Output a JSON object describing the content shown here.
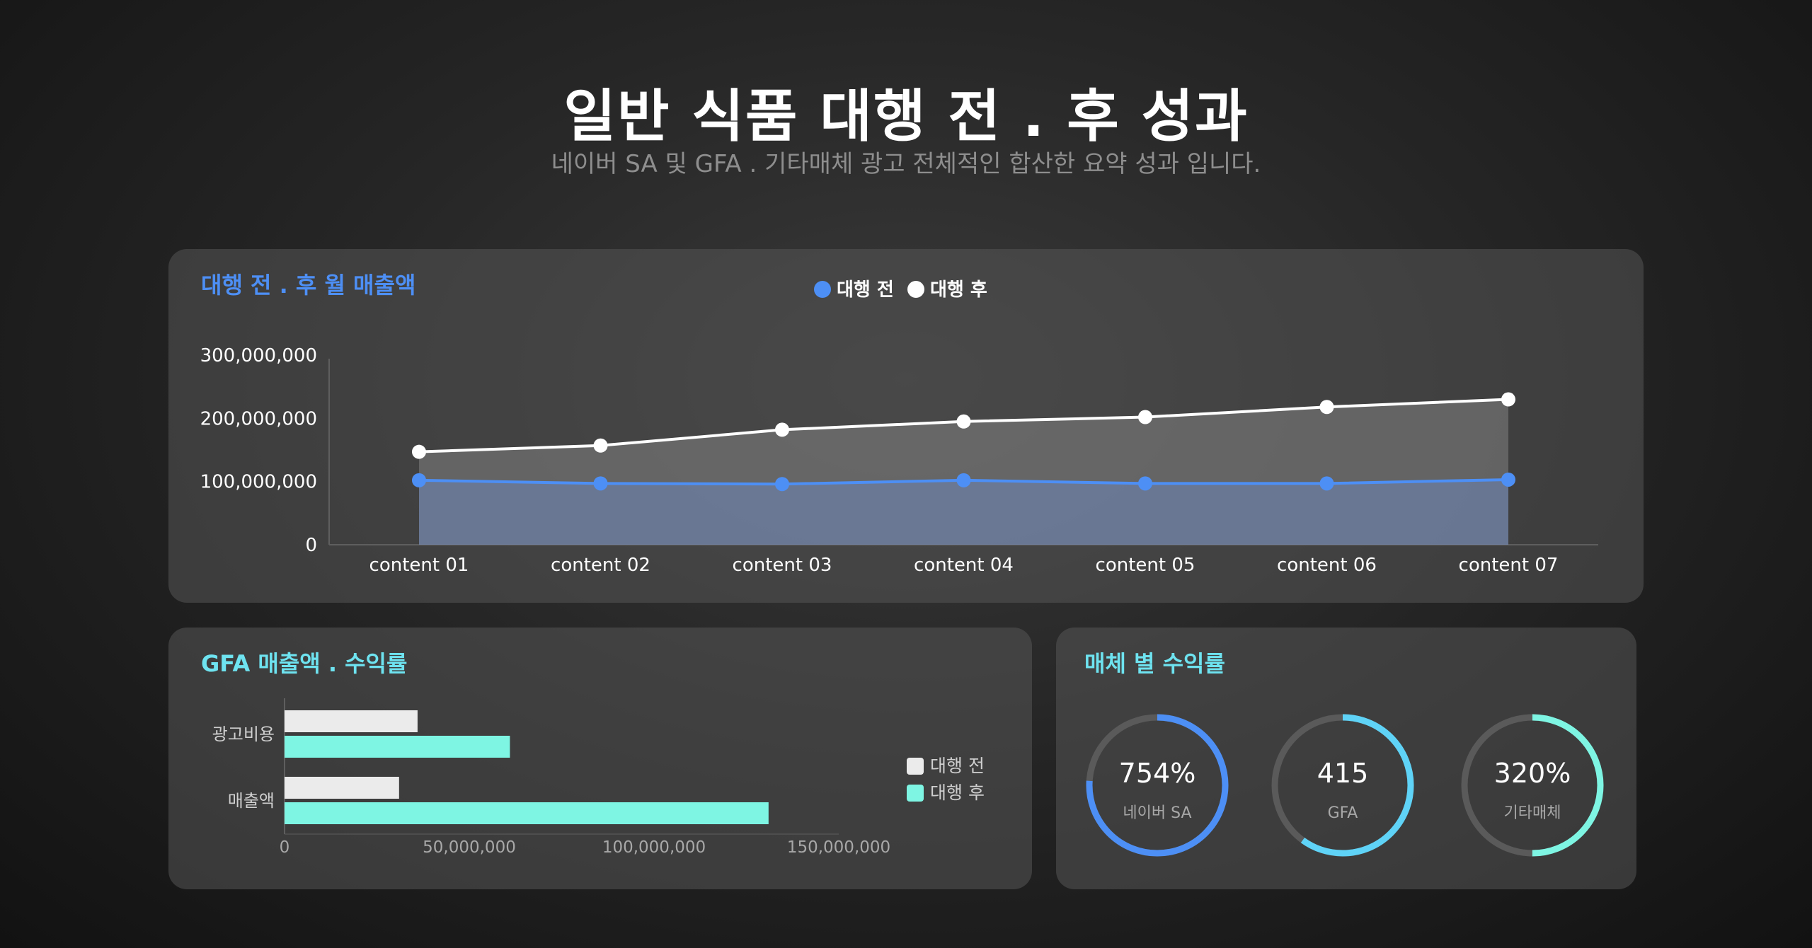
{
  "header": {
    "title": "일반 식품 대행 전 . 후 성과",
    "subtitle": "네이버 SA 및 GFA . 기타매체 광고 전체적인 합산한 요약 성과 입니다."
  },
  "colors": {
    "blue": "#4d8ff5",
    "white": "#ffffff",
    "teal": "#7ef5e3",
    "light_gray": "#ebebeb",
    "cyan": "#5fd3f7",
    "title_blue": "#4d8ff5",
    "title_cyan": "#6ee3f0"
  },
  "chart_data": [
    {
      "type": "area",
      "title": "대행 전 . 후 월 매출액",
      "legend_position": "top-center",
      "categories": [
        "content 01",
        "content 02",
        "content 03",
        "content 04",
        "content 05",
        "content 06",
        "content 07"
      ],
      "series": [
        {
          "name": "대행 전",
          "values": [
            102000000,
            97000000,
            96000000,
            102000000,
            97000000,
            97000000,
            103000000
          ]
        },
        {
          "name": "대행 후",
          "values": [
            147000000,
            157000000,
            182000000,
            195000000,
            202000000,
            218000000,
            230000000
          ]
        }
      ],
      "y_ticks": [
        "300,000,000",
        "200,000,000",
        "100,000,000",
        "0"
      ],
      "ylim": [
        0,
        300000000
      ]
    },
    {
      "type": "bar",
      "orientation": "horizontal",
      "title": "GFA 매출액 . 수익률",
      "legend_position": "right",
      "categories": [
        "광고비용",
        "매출액"
      ],
      "series": [
        {
          "name": "대행 전",
          "values": [
            36000000,
            31000000
          ]
        },
        {
          "name": "대행 후",
          "values": [
            61000000,
            131000000
          ]
        }
      ],
      "x_ticks": [
        "0",
        "50,000,000",
        "100,000,000",
        "150,000,000"
      ],
      "xlim": [
        0,
        150000000
      ]
    },
    {
      "type": "pie",
      "title": "매체 별 수익률",
      "items": [
        {
          "label": "네이버 SA",
          "value_text": "754%",
          "fraction": 0.76
        },
        {
          "label": "GFA",
          "value_text": "415",
          "fraction": 0.6
        },
        {
          "label": "기타매체",
          "value_text": "320%",
          "fraction": 0.5
        }
      ]
    }
  ]
}
